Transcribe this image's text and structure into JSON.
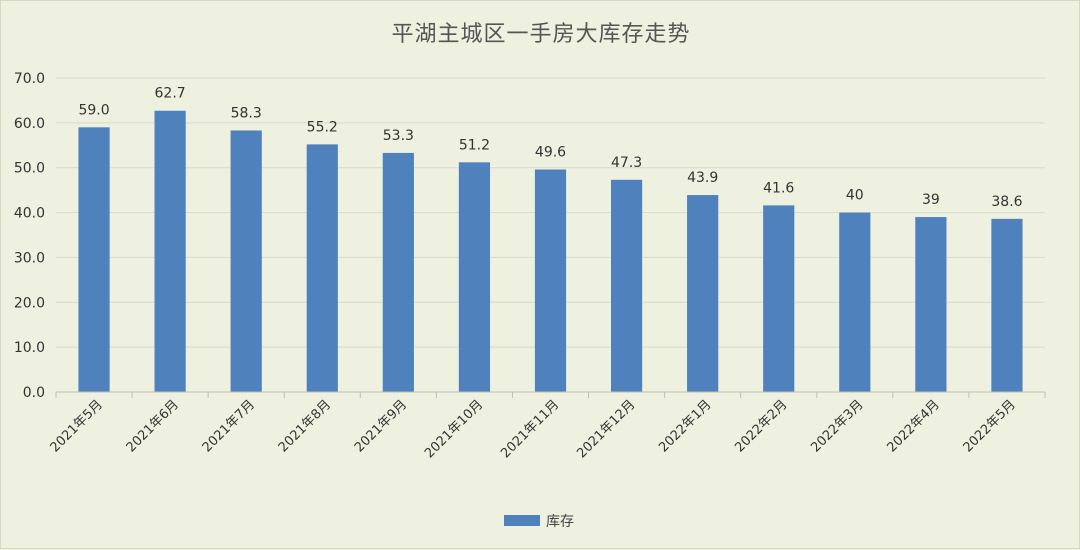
{
  "chart_data": {
    "type": "bar",
    "title": "平湖主城区一手房大库存走势",
    "categories": [
      "2021年5月",
      "2021年6月",
      "2021年7月",
      "2021年8月",
      "2021年9月",
      "2021年10月",
      "2021年11月",
      "2021年12月",
      "2022年1月",
      "2022年2月",
      "2022年3月",
      "2022年4月",
      "2022年5月"
    ],
    "series": [
      {
        "name": "库存",
        "values": [
          59.0,
          62.7,
          58.3,
          55.2,
          53.3,
          51.2,
          49.6,
          47.3,
          43.9,
          41.6,
          40,
          39,
          38.6
        ],
        "labels": [
          "59.0",
          "62.7",
          "58.3",
          "55.2",
          "53.3",
          "51.2",
          "49.6",
          "47.3",
          "43.9",
          "41.6",
          "40",
          "39",
          "38.6"
        ]
      }
    ],
    "yticks": [
      "0.0",
      "10.0",
      "20.0",
      "30.0",
      "40.0",
      "50.0",
      "60.0",
      "70.0"
    ],
    "ylim": [
      0,
      70
    ],
    "grid": true,
    "legend_position": "bottom",
    "colors": {
      "bar": "#4f81bd",
      "grid": "#d9dbc9",
      "background": "#eef0e0"
    }
  }
}
